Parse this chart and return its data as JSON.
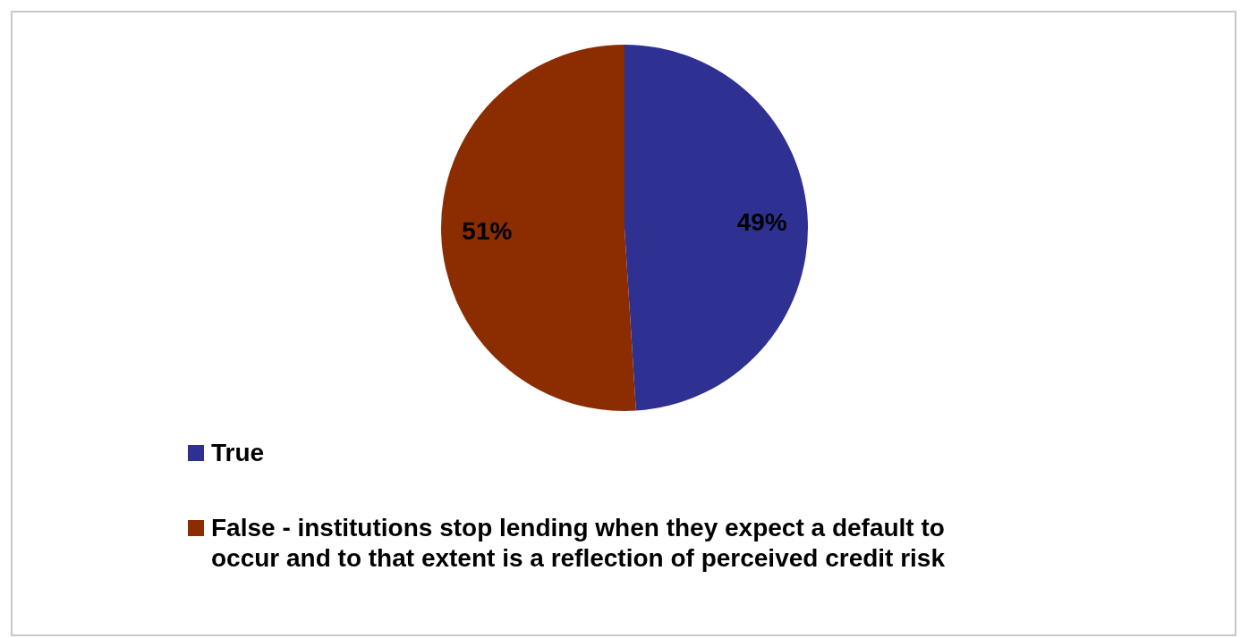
{
  "chart_data": {
    "type": "pie",
    "categories": [
      "True",
      "False - institutions stop lending when they expect a default to occur and to that extent is a reflection of perceived credit risk"
    ],
    "values": [
      49,
      51
    ],
    "colors": [
      "#2e3192",
      "#8b2d00"
    ],
    "value_labels": [
      "49%",
      "51%"
    ],
    "legend": "bottom"
  }
}
